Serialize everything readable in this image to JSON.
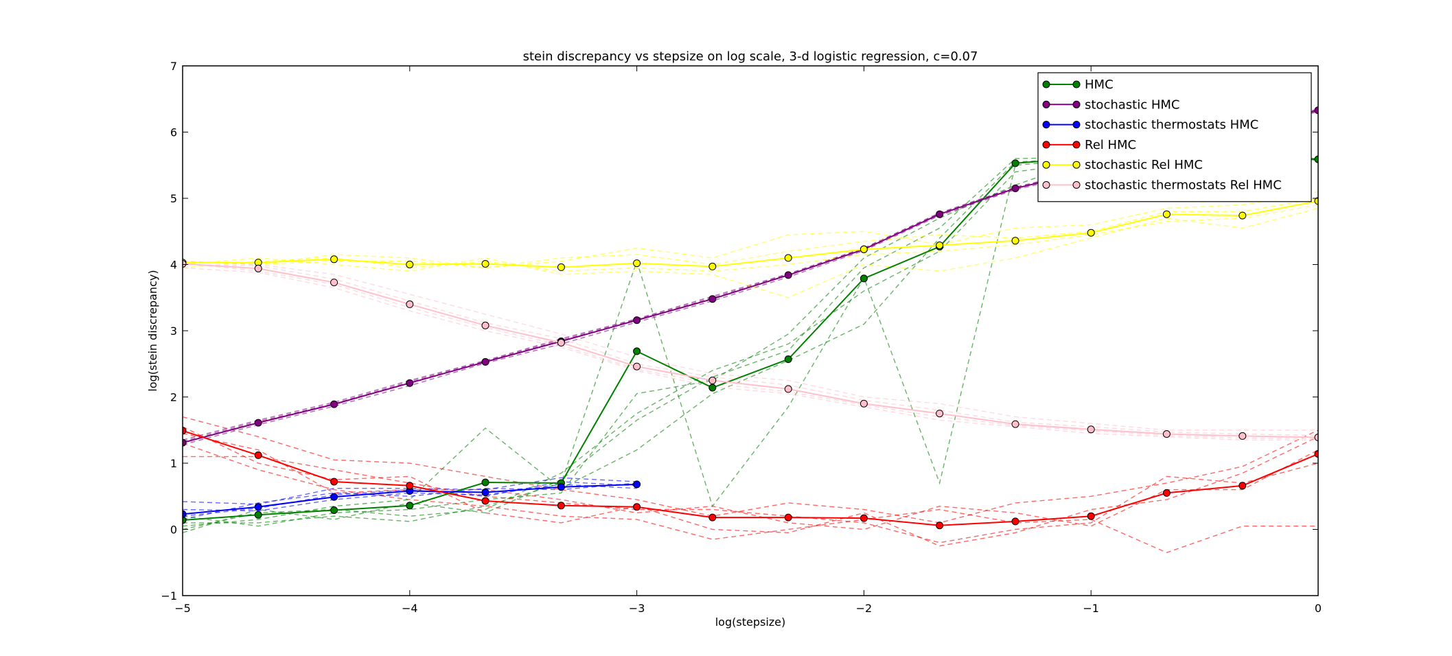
{
  "chart_data": {
    "type": "line",
    "title": "stein discrepancy vs stepsize on log scale, 3-d logistic regression, c=0.07",
    "xlabel": "log(stepsize)",
    "ylabel": "log(stein discrepancy)",
    "xlim": [
      -5,
      0
    ],
    "ylim": [
      -1,
      7
    ],
    "xticks": [
      -5,
      -4,
      -3,
      -2,
      -1,
      0
    ],
    "xtick_labels": [
      "−5",
      "−4",
      "−3",
      "−2",
      "−1",
      "0"
    ],
    "yticks": [
      -1,
      0,
      1,
      2,
      3,
      4,
      5,
      6,
      7
    ],
    "ytick_labels": [
      "−1",
      "0",
      "1",
      "2",
      "3",
      "4",
      "5",
      "6",
      "7"
    ],
    "grid": false,
    "legend_position": "top-right",
    "series": [
      {
        "name": "HMC",
        "color": "#008000",
        "marker_fill": "#008000",
        "x": [
          -5,
          -4.667,
          -4.333,
          -4,
          -3.667,
          -3.333,
          -3,
          -2.667,
          -2.333,
          -2,
          -1.667,
          -1.333,
          -1,
          -0.667,
          -0.333,
          0
        ],
        "values": [
          0.14,
          0.22,
          0.29,
          0.36,
          0.71,
          0.7,
          2.69,
          2.14,
          2.57,
          3.79,
          4.27,
          5.53,
          5.62,
          5.62,
          5.6,
          5.59
        ],
        "runs": [
          [
            0.05,
            0.15,
            0.35,
            0.45,
            1.53,
            0.62,
            1.2,
            2.05,
            2.55,
            3.1,
            4.4,
            5.55,
            5.6,
            5.62,
            5.6,
            5.58
          ],
          [
            0.1,
            0.1,
            0.2,
            0.12,
            0.35,
            0.7,
            4.05,
            0.35,
            1.85,
            3.8,
            0.7,
            5.5,
            5.6,
            5.6,
            5.6,
            5.58
          ],
          [
            0.0,
            0.25,
            0.3,
            0.2,
            0.3,
            0.85,
            1.75,
            2.4,
            2.8,
            3.6,
            4.2,
            5.4,
            5.55,
            5.6,
            5.6,
            5.6
          ],
          [
            0.2,
            0.05,
            0.25,
            0.3,
            0.45,
            0.55,
            2.05,
            2.25,
            2.95,
            4.1,
            4.7,
            5.2,
            5.6,
            5.6,
            5.6,
            5.6
          ],
          [
            -0.05,
            0.3,
            0.15,
            0.4,
            0.25,
            0.75,
            1.65,
            2.3,
            2.7,
            3.95,
            4.55,
            5.6,
            5.62,
            5.62,
            5.6,
            5.6
          ]
        ]
      },
      {
        "name": "stochastic HMC",
        "color": "#800080",
        "marker_fill": "#800080",
        "x": [
          -5,
          -4.667,
          -4.333,
          -4,
          -3.667,
          -3.333,
          -3,
          -2.667,
          -2.333,
          -2,
          -1.667,
          -1.333,
          -1,
          -0.667,
          -0.333,
          0
        ],
        "values": [
          1.31,
          1.61,
          1.89,
          2.21,
          2.53,
          2.84,
          3.16,
          3.48,
          3.84,
          4.23,
          4.76,
          5.15,
          5.42,
          5.72,
          6.02,
          6.33
        ],
        "runs": [
          [
            1.35,
            1.65,
            1.92,
            2.25,
            2.55,
            2.88,
            3.18,
            3.52,
            3.86,
            4.25,
            4.78,
            5.17,
            5.44,
            5.74,
            6.04,
            6.35
          ],
          [
            1.28,
            1.58,
            1.86,
            2.17,
            2.51,
            2.8,
            3.13,
            3.45,
            3.81,
            4.21,
            4.74,
            5.13,
            5.4,
            5.7,
            6.0,
            6.31
          ],
          [
            1.33,
            1.63,
            1.9,
            2.23,
            2.54,
            2.86,
            3.17,
            3.5,
            3.85,
            4.24,
            4.77,
            5.16,
            5.43,
            5.73,
            6.03,
            6.34
          ]
        ]
      },
      {
        "name": "stochastic thermostats HMC",
        "color": "#0000ff",
        "marker_fill": "#0000ff",
        "x": [
          -5,
          -4.667,
          -4.333,
          -4,
          -3.667,
          -3.333,
          -3
        ],
        "values": [
          0.23,
          0.34,
          0.49,
          0.58,
          0.56,
          0.64,
          0.68
        ],
        "runs": [
          [
            0.42,
            0.38,
            0.62,
            0.62,
            0.6,
            0.78,
            0.72
          ],
          [
            0.3,
            0.28,
            0.45,
            0.55,
            0.52,
            0.68,
            0.62
          ],
          [
            0.15,
            0.4,
            0.55,
            0.5,
            0.62,
            0.6,
            0.7
          ],
          [
            0.2,
            0.32,
            0.52,
            0.6,
            0.5,
            0.72,
            0.66
          ]
        ]
      },
      {
        "name": "Rel HMC",
        "color": "#ff0000",
        "marker_fill": "#ff0000",
        "x": [
          -5,
          -4.667,
          -4.333,
          -4,
          -3.667,
          -3.333,
          -3,
          -2.667,
          -2.333,
          -2,
          -1.667,
          -1.333,
          -1,
          -0.667,
          -0.333,
          0
        ],
        "values": [
          1.49,
          1.12,
          0.72,
          0.66,
          0.43,
          0.36,
          0.34,
          0.18,
          0.18,
          0.17,
          0.06,
          0.12,
          0.2,
          0.55,
          0.66,
          1.14
        ],
        "runs": [
          [
            1.7,
            1.4,
            1.05,
            1.0,
            0.8,
            0.6,
            0.45,
            0.2,
            0.4,
            0.3,
            0.1,
            0.4,
            0.5,
            0.7,
            0.95,
            1.5
          ],
          [
            1.1,
            1.1,
            0.9,
            0.7,
            0.5,
            0.4,
            0.3,
            0.3,
            0.2,
            0.1,
            -0.2,
            0.0,
            0.1,
            0.8,
            0.7,
            1.0
          ],
          [
            1.3,
            0.9,
            0.6,
            0.45,
            0.35,
            0.2,
            0.15,
            -0.15,
            0.0,
            0.15,
            0.3,
            0.1,
            0.15,
            -0.35,
            0.05,
            0.05
          ],
          [
            1.55,
            1.0,
            0.75,
            0.8,
            0.25,
            0.1,
            0.35,
            0.0,
            -0.05,
            0.25,
            -0.25,
            -0.05,
            0.3,
            0.45,
            0.85,
            1.4
          ],
          [
            1.45,
            1.2,
            0.55,
            0.6,
            0.6,
            0.45,
            0.25,
            0.35,
            0.1,
            0.0,
            0.35,
            0.25,
            0.05,
            0.6,
            0.6,
            1.2
          ]
        ]
      },
      {
        "name": "stochastic Rel HMC",
        "color": "#ffff00",
        "marker_fill": "#ffff00",
        "x": [
          -5,
          -4.667,
          -4.333,
          -4,
          -3.667,
          -3.333,
          -3,
          -2.667,
          -2.333,
          -2,
          -1.667,
          -1.333,
          -1,
          -0.667,
          -0.333,
          0
        ],
        "values": [
          4.03,
          4.03,
          4.08,
          4.0,
          4.01,
          3.96,
          4.02,
          3.97,
          4.1,
          4.23,
          4.29,
          4.36,
          4.48,
          4.76,
          4.74,
          4.96
        ],
        "runs": [
          [
            4.05,
            4.0,
            4.15,
            4.1,
            3.95,
            4.05,
            4.25,
            4.1,
            4.45,
            4.5,
            4.3,
            4.55,
            4.6,
            4.85,
            4.9,
            5.1
          ],
          [
            4.0,
            4.1,
            4.0,
            3.9,
            4.1,
            3.85,
            3.9,
            3.85,
            3.5,
            4.0,
            3.9,
            4.1,
            4.4,
            4.7,
            4.55,
            4.85
          ],
          [
            4.05,
            4.0,
            4.05,
            4.05,
            3.95,
            4.1,
            4.15,
            4.0,
            4.2,
            4.35,
            4.45,
            4.4,
            4.5,
            4.8,
            4.8,
            5.0
          ],
          [
            3.95,
            4.05,
            4.1,
            3.95,
            4.05,
            3.9,
            3.95,
            3.9,
            4.0,
            4.15,
            4.2,
            4.3,
            4.45,
            4.65,
            4.7,
            4.9
          ]
        ]
      },
      {
        "name": "stochastic thermostats Rel HMC",
        "color": "#ffc0cb",
        "marker_fill": "#ffc0cb",
        "x": [
          -5,
          -4.667,
          -4.333,
          -4,
          -3.667,
          -3.333,
          -3,
          -2.667,
          -2.333,
          -2,
          -1.667,
          -1.333,
          -1,
          -0.667,
          -0.333,
          0
        ],
        "values": [
          4.01,
          3.94,
          3.73,
          3.4,
          3.08,
          2.82,
          2.46,
          2.25,
          2.12,
          1.9,
          1.75,
          1.59,
          1.51,
          1.44,
          1.41,
          1.39
        ],
        "runs": [
          [
            4.05,
            4.0,
            3.85,
            3.55,
            3.25,
            2.95,
            2.6,
            2.35,
            2.25,
            2.0,
            1.9,
            1.7,
            1.6,
            1.5,
            1.5,
            1.5
          ],
          [
            3.95,
            3.88,
            3.65,
            3.3,
            3.0,
            2.75,
            2.4,
            2.15,
            2.05,
            1.85,
            1.65,
            1.55,
            1.45,
            1.4,
            1.35,
            1.35
          ],
          [
            4.0,
            3.98,
            3.78,
            3.45,
            3.12,
            2.88,
            2.5,
            2.3,
            2.18,
            1.95,
            1.8,
            1.62,
            1.55,
            1.47,
            1.44,
            1.42
          ],
          [
            4.02,
            3.9,
            3.7,
            3.35,
            3.05,
            2.78,
            2.42,
            2.2,
            2.08,
            1.88,
            1.7,
            1.57,
            1.49,
            1.42,
            1.38,
            1.37
          ]
        ]
      }
    ]
  }
}
